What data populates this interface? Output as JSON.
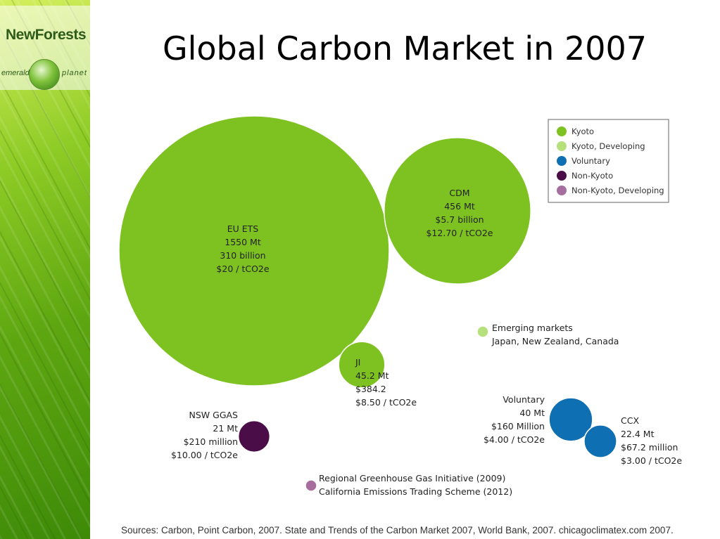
{
  "logo": {
    "brand": "NewForests",
    "left_word": "emerald",
    "right_word": "planet"
  },
  "title": "Global Carbon Market in 2007",
  "legend": {
    "items": [
      {
        "label": "Kyoto",
        "color": "#7dc221"
      },
      {
        "label": "Kyoto, Developing",
        "color": "#b6e07b"
      },
      {
        "label": "Voluntary",
        "color": "#0f6fb3"
      },
      {
        "label": "Non-Kyoto",
        "color": "#4a0d47"
      },
      {
        "label": "Non-Kyoto, Developing",
        "color": "#a56e9e"
      }
    ]
  },
  "chart_data": {
    "type": "bubble",
    "size_unit": "Mt",
    "series": [
      {
        "category": "Kyoto",
        "markets": [
          {
            "lines": [
              "EU ETS",
              "1550 Mt",
              "310 billion",
              "$20 / tCO2e"
            ],
            "volume_mt": 1550
          },
          {
            "lines": [
              "CDM",
              "456 Mt",
              "$5.7 billion",
              "$12.70 / tCO2e"
            ],
            "volume_mt": 456
          },
          {
            "lines": [
              "JI",
              "45.2 Mt",
              "$384.2",
              "$8.50 / tCO2e"
            ],
            "volume_mt": 45.2
          }
        ]
      },
      {
        "category": "Kyoto, Developing",
        "markets": [
          {
            "lines": [
              "Emerging markets",
              "Japan, New Zealand, Canada"
            ],
            "volume_mt": null
          }
        ]
      },
      {
        "category": "Voluntary",
        "markets": [
          {
            "lines": [
              "Voluntary",
              "40 Mt",
              "$160 Million",
              "$4.00 / tCO2e"
            ],
            "volume_mt": 40
          },
          {
            "lines": [
              "CCX",
              "22.4 Mt",
              "$67.2 million",
              "$3.00 / tCO2e"
            ],
            "volume_mt": 22.4
          }
        ]
      },
      {
        "category": "Non-Kyoto",
        "markets": [
          {
            "lines": [
              "NSW GGAS",
              "21 Mt",
              "$210 million",
              "$10.00 / tCO2e"
            ],
            "volume_mt": 21
          }
        ]
      },
      {
        "category": "Non-Kyoto, Developing",
        "markets": [
          {
            "lines": [
              "Regional Greenhouse Gas Initiative (2009)",
              "California Emissions Trading Scheme (2012)"
            ],
            "volume_mt": null
          }
        ]
      }
    ]
  },
  "sources": "Sources: Carbon, Point Carbon, 2007.  State and Trends of  the Carbon Market 2007, World Bank, 2007.  chicagoclimatex.com 2007."
}
